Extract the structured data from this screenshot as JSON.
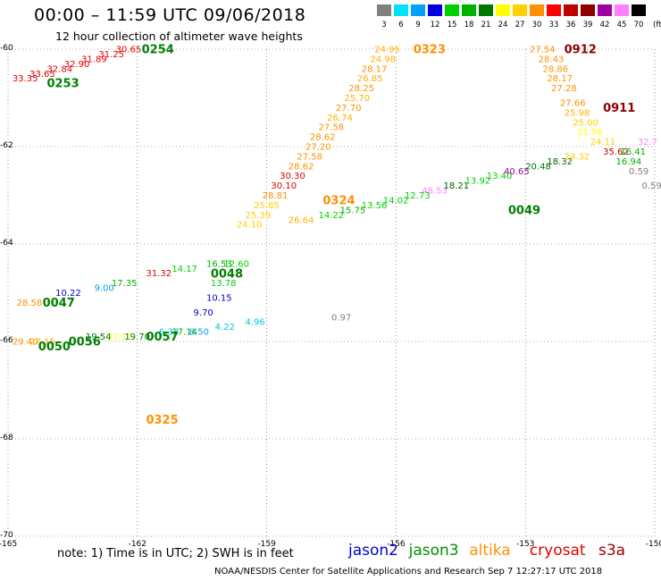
{
  "title": "00:00 – 11:59 UTC 09/06/2018",
  "subtitle": "12 hour collection of altimeter wave heights",
  "scale": {
    "unit": "(ft)",
    "labels": [
      "3",
      "6",
      "9",
      "12",
      "15",
      "18",
      "21",
      "24",
      "27",
      "30",
      "33",
      "36",
      "39",
      "42",
      "45",
      "70"
    ],
    "colors": [
      "#808080",
      "#00e0ff",
      "#00a0ff",
      "#0000e0",
      "#00d000",
      "#00b000",
      "#007800",
      "#ffff00",
      "#ffd000",
      "#ff9000",
      "#ff0000",
      "#c00000",
      "#900000",
      "#a000a0",
      "#ff80ff",
      "#000000"
    ]
  },
  "axes": {
    "lat_labels": [
      "-60",
      "-62",
      "-64",
      "-66",
      "-68",
      "-70"
    ],
    "lon_labels": [
      "-165",
      "-162",
      "-159",
      "-156",
      "-153",
      "-150"
    ]
  },
  "note": "note: 1) Time is in UTC; 2) SWH is in feet",
  "legend": [
    {
      "name": "jason2",
      "color": "#0000d0"
    },
    {
      "name": "jason3",
      "color": "#009000"
    },
    {
      "name": "altika",
      "color": "#ff9000"
    },
    {
      "name": "cryosat",
      "color": "#e00000"
    },
    {
      "name": "s3a",
      "color": "#a00000"
    }
  ],
  "footer": "NOAA/NESDIS Center for Satellite Applications and Research   Sep  7 12:27:17 UTC 2018",
  "times": [
    {
      "text": "0254",
      "lon": -161.9,
      "lat": -60.0,
      "color": "#008000"
    },
    {
      "text": "0253",
      "lon": -164.1,
      "lat": -60.7,
      "color": "#008000"
    },
    {
      "text": "0323",
      "lon": -155.6,
      "lat": -60.0,
      "color": "#ff9000"
    },
    {
      "text": "0912",
      "lon": -152.1,
      "lat": -60.0,
      "color": "#900000"
    },
    {
      "text": "0911",
      "lon": -151.2,
      "lat": -61.2,
      "color": "#900000"
    },
    {
      "text": "0324",
      "lon": -157.7,
      "lat": -63.1,
      "color": "#ff9000"
    },
    {
      "text": "0049",
      "lon": -153.4,
      "lat": -63.3,
      "color": "#008000"
    },
    {
      "text": "0048",
      "lon": -160.3,
      "lat": -64.6,
      "color": "#008000"
    },
    {
      "text": "0047",
      "lon": -164.2,
      "lat": -65.2,
      "color": "#008000"
    },
    {
      "text": "0050",
      "lon": -164.3,
      "lat": -66.1,
      "color": "#008000"
    },
    {
      "text": "0056",
      "lon": -163.6,
      "lat": -66.0,
      "color": "#008000"
    },
    {
      "text": "0057",
      "lon": -161.8,
      "lat": -65.9,
      "color": "#008000"
    },
    {
      "text": "0325",
      "lon": -161.8,
      "lat": -67.6,
      "color": "#ff9000"
    }
  ],
  "values": [
    {
      "text": "33.35",
      "lon": -164.9,
      "lat": -60.6,
      "color": "#e00000"
    },
    {
      "text": "33.65",
      "lon": -164.5,
      "lat": -60.5,
      "color": "#e00000"
    },
    {
      "text": "32.84",
      "lon": -164.1,
      "lat": -60.4,
      "color": "#e00000"
    },
    {
      "text": "32.90",
      "lon": -163.7,
      "lat": -60.3,
      "color": "#e00000"
    },
    {
      "text": "31.89",
      "lon": -163.3,
      "lat": -60.2,
      "color": "#e00000"
    },
    {
      "text": "31.25",
      "lon": -162.9,
      "lat": -60.1,
      "color": "#e00000"
    },
    {
      "text": "30.65",
      "lon": -162.5,
      "lat": -60.0,
      "color": "#e00000"
    },
    {
      "text": "24.95",
      "lon": -156.5,
      "lat": -60.0,
      "color": "#ffb000"
    },
    {
      "text": "24.98",
      "lon": -156.6,
      "lat": -60.2,
      "color": "#ffb000"
    },
    {
      "text": "28.17",
      "lon": -156.8,
      "lat": -60.4,
      "color": "#ff9000"
    },
    {
      "text": "26.85",
      "lon": -156.9,
      "lat": -60.6,
      "color": "#ffb000"
    },
    {
      "text": "28.25",
      "lon": -157.1,
      "lat": -60.8,
      "color": "#ff9000"
    },
    {
      "text": "25.70",
      "lon": -157.2,
      "lat": -61.0,
      "color": "#ffb000"
    },
    {
      "text": "27.70",
      "lon": -157.4,
      "lat": -61.2,
      "color": "#ff9000"
    },
    {
      "text": "26.74",
      "lon": -157.6,
      "lat": -61.4,
      "color": "#ffb000"
    },
    {
      "text": "27.58",
      "lon": -157.8,
      "lat": -61.6,
      "color": "#ff9000"
    },
    {
      "text": "28.62",
      "lon": -158.0,
      "lat": -61.8,
      "color": "#ff9000"
    },
    {
      "text": "27.20",
      "lon": -158.1,
      "lat": -62.0,
      "color": "#ff9000"
    },
    {
      "text": "27.58",
      "lon": -158.3,
      "lat": -62.2,
      "color": "#ff9000"
    },
    {
      "text": "28.62",
      "lon": -158.5,
      "lat": -62.4,
      "color": "#ff9000"
    },
    {
      "text": "30.30",
      "lon": -158.7,
      "lat": -62.6,
      "color": "#e00000"
    },
    {
      "text": "30.10",
      "lon": -158.9,
      "lat": -62.8,
      "color": "#e00000"
    },
    {
      "text": "28.81",
      "lon": -159.1,
      "lat": -63.0,
      "color": "#ff9000"
    },
    {
      "text": "25.85",
      "lon": -159.3,
      "lat": -63.2,
      "color": "#ffd000"
    },
    {
      "text": "25.39",
      "lon": -159.5,
      "lat": -63.4,
      "color": "#ffd000"
    },
    {
      "text": "24.10",
      "lon": -159.7,
      "lat": -63.6,
      "color": "#ffd000"
    },
    {
      "text": "26.64",
      "lon": -158.5,
      "lat": -63.5,
      "color": "#ffb000"
    },
    {
      "text": "14.22",
      "lon": -157.8,
      "lat": -63.4,
      "color": "#00d000"
    },
    {
      "text": "15.75",
      "lon": -157.3,
      "lat": -63.3,
      "color": "#00b000"
    },
    {
      "text": "13.56",
      "lon": -156.8,
      "lat": -63.2,
      "color": "#00d000"
    },
    {
      "text": "14.02",
      "lon": -156.3,
      "lat": -63.1,
      "color": "#00d000"
    },
    {
      "text": "12.73",
      "lon": -155.8,
      "lat": -63.0,
      "color": "#00d000"
    },
    {
      "text": "48.53",
      "lon": -155.4,
      "lat": -62.9,
      "color": "#ff80ff"
    },
    {
      "text": "18.21",
      "lon": -154.9,
      "lat": -62.8,
      "color": "#006000"
    },
    {
      "text": "13.92",
      "lon": -154.4,
      "lat": -62.7,
      "color": "#00d000"
    },
    {
      "text": "13.40",
      "lon": -153.9,
      "lat": -62.6,
      "color": "#00d000"
    },
    {
      "text": "40.65",
      "lon": -153.5,
      "lat": -62.5,
      "color": "#a000a0"
    },
    {
      "text": "20.48",
      "lon": -153.0,
      "lat": -62.4,
      "color": "#007800"
    },
    {
      "text": "18.32",
      "lon": -152.5,
      "lat": -62.3,
      "color": "#006000"
    },
    {
      "text": "24.32",
      "lon": -152.1,
      "lat": -62.2,
      "color": "#ffd000"
    },
    {
      "text": "24.11",
      "lon": -151.5,
      "lat": -61.9,
      "color": "#ffd000"
    },
    {
      "text": "35.62",
      "lon": -151.2,
      "lat": -62.1,
      "color": "#c00000"
    },
    {
      "text": "16.41",
      "lon": -150.8,
      "lat": -62.1,
      "color": "#00b000"
    },
    {
      "text": "16.94",
      "lon": -150.9,
      "lat": -62.3,
      "color": "#00b000"
    },
    {
      "text": "32.7",
      "lon": -150.4,
      "lat": -61.9,
      "color": "#ff80ff"
    },
    {
      "text": "0.59",
      "lon": -150.6,
      "lat": -62.5,
      "color": "#808080"
    },
    {
      "text": "0.59",
      "lon": -150.3,
      "lat": -62.8,
      "color": "#808080"
    },
    {
      "text": "27.54",
      "lon": -152.9,
      "lat": -60.0,
      "color": "#ff9000"
    },
    {
      "text": "28.43",
      "lon": -152.7,
      "lat": -60.2,
      "color": "#ff9000"
    },
    {
      "text": "28.86",
      "lon": -152.6,
      "lat": -60.4,
      "color": "#ff9000"
    },
    {
      "text": "28.17",
      "lon": -152.5,
      "lat": -60.6,
      "color": "#ff9000"
    },
    {
      "text": "27.28",
      "lon": -152.4,
      "lat": -60.8,
      "color": "#ff9000"
    },
    {
      "text": "27.66",
      "lon": -152.2,
      "lat": -61.1,
      "color": "#ff9000"
    },
    {
      "text": "25.98",
      "lon": -152.1,
      "lat": -61.3,
      "color": "#ffb000"
    },
    {
      "text": "25.00",
      "lon": -151.9,
      "lat": -61.5,
      "color": "#ffd000"
    },
    {
      "text": "21.96",
      "lon": -151.8,
      "lat": -61.7,
      "color": "#ffff00"
    },
    {
      "text": "16.53",
      "lon": -160.4,
      "lat": -64.4,
      "color": "#00b000"
    },
    {
      "text": "12.60",
      "lon": -160.0,
      "lat": -64.4,
      "color": "#00d000"
    },
    {
      "text": "13.78",
      "lon": -160.3,
      "lat": -64.8,
      "color": "#00d000"
    },
    {
      "text": "14.17",
      "lon": -161.2,
      "lat": -64.5,
      "color": "#00d000"
    },
    {
      "text": "31.32",
      "lon": -161.8,
      "lat": -64.6,
      "color": "#e00000"
    },
    {
      "text": "17.35",
      "lon": -162.6,
      "lat": -64.8,
      "color": "#00b000"
    },
    {
      "text": "9.00",
      "lon": -163.0,
      "lat": -64.9,
      "color": "#00a0ff"
    },
    {
      "text": "10.22",
      "lon": -163.9,
      "lat": -65.0,
      "color": "#0000d0"
    },
    {
      "text": "28.58",
      "lon": -164.8,
      "lat": -65.2,
      "color": "#ff9000"
    },
    {
      "text": "10.15",
      "lon": -160.4,
      "lat": -65.1,
      "color": "#0000d0"
    },
    {
      "text": "9.70",
      "lon": -160.7,
      "lat": -65.4,
      "color": "#0000d0"
    },
    {
      "text": "4.96",
      "lon": -159.5,
      "lat": -65.6,
      "color": "#00c8e0"
    },
    {
      "text": "4.22",
      "lon": -160.2,
      "lat": -65.7,
      "color": "#00c8e0"
    },
    {
      "text": "0.97",
      "lon": -157.5,
      "lat": -65.5,
      "color": "#808080"
    },
    {
      "text": "8.50",
      "lon": -160.8,
      "lat": -65.8,
      "color": "#00a0ff"
    },
    {
      "text": "17.14",
      "lon": -161.2,
      "lat": -65.8,
      "color": "#00b000"
    },
    {
      "text": "6.33",
      "lon": -161.5,
      "lat": -65.8,
      "color": "#00c8e0"
    },
    {
      "text": "22.17",
      "lon": -162.7,
      "lat": -65.9,
      "color": "#ffff00"
    },
    {
      "text": "19.70",
      "lon": -162.3,
      "lat": -65.9,
      "color": "#007800"
    },
    {
      "text": "29.40",
      "lon": -164.9,
      "lat": -66.0,
      "color": "#ff9000"
    },
    {
      "text": "27.15",
      "lon": -164.5,
      "lat": -66.0,
      "color": "#ffb000"
    },
    {
      "text": "19.54",
      "lon": -163.2,
      "lat": -65.9,
      "color": "#007800"
    }
  ]
}
